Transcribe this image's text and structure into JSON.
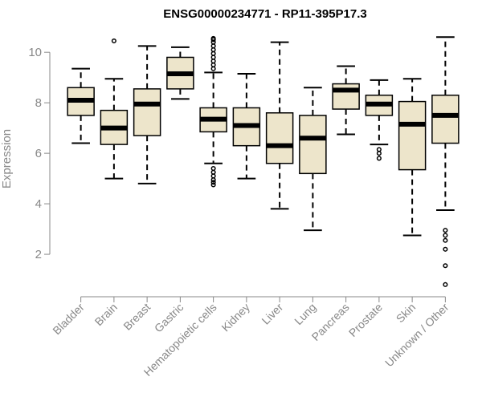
{
  "chart_data": {
    "type": "boxplot",
    "title": "ENSG00000234771 - RP11-395P17.3",
    "xlabel": "",
    "ylabel": "Expression",
    "ylim": [
      0.7,
      10.8
    ],
    "yticks": [
      2,
      4,
      6,
      8,
      10
    ],
    "grid": false,
    "colors": {
      "box_fill": "#ede5cb",
      "stroke": "#000000",
      "axis": "#888888",
      "text": "#888888"
    },
    "categories": [
      "Bladder",
      "Brain",
      "Breast",
      "Gastric",
      "Hematopoietic cells",
      "Kidney",
      "Liver",
      "Lung",
      "Pancreas",
      "Prostate",
      "Skin",
      "Unknown / Other"
    ],
    "boxes": [
      {
        "label": "Bladder",
        "whisker_low": 6.4,
        "q1": 7.5,
        "median": 8.1,
        "q3": 8.6,
        "whisker_high": 9.35,
        "outliers": []
      },
      {
        "label": "Brain",
        "whisker_low": 5.0,
        "q1": 6.35,
        "median": 7.0,
        "q3": 7.7,
        "whisker_high": 8.95,
        "outliers": [
          10.45
        ]
      },
      {
        "label": "Breast",
        "whisker_low": 4.8,
        "q1": 6.7,
        "median": 7.95,
        "q3": 8.55,
        "whisker_high": 10.25,
        "outliers": []
      },
      {
        "label": "Gastric",
        "whisker_low": 8.15,
        "q1": 8.55,
        "median": 9.15,
        "q3": 9.8,
        "whisker_high": 10.2,
        "outliers": []
      },
      {
        "label": "Hematopoietic cells",
        "whisker_low": 5.6,
        "q1": 6.85,
        "median": 7.35,
        "q3": 7.8,
        "whisker_high": 9.2,
        "outliers": [
          9.35,
          9.5,
          9.65,
          9.8,
          9.95,
          10.1,
          10.25,
          10.4,
          10.5,
          10.55,
          5.4,
          5.25,
          5.1,
          4.95,
          4.85,
          4.75
        ]
      },
      {
        "label": "Kidney",
        "whisker_low": 5.0,
        "q1": 6.3,
        "median": 7.1,
        "q3": 7.8,
        "whisker_high": 9.15,
        "outliers": []
      },
      {
        "label": "Liver",
        "whisker_low": 3.8,
        "q1": 5.6,
        "median": 6.3,
        "q3": 7.6,
        "whisker_high": 10.4,
        "outliers": []
      },
      {
        "label": "Lung",
        "whisker_low": 2.95,
        "q1": 5.2,
        "median": 6.6,
        "q3": 7.5,
        "whisker_high": 8.6,
        "outliers": []
      },
      {
        "label": "Pancreas",
        "whisker_low": 6.75,
        "q1": 7.75,
        "median": 8.5,
        "q3": 8.75,
        "whisker_high": 9.45,
        "outliers": []
      },
      {
        "label": "Prostate",
        "whisker_low": 6.35,
        "q1": 7.5,
        "median": 7.95,
        "q3": 8.3,
        "whisker_high": 8.9,
        "outliers": [
          6.15,
          6.0,
          5.8
        ]
      },
      {
        "label": "Skin",
        "whisker_low": 2.75,
        "q1": 5.35,
        "median": 7.15,
        "q3": 8.05,
        "whisker_high": 8.95,
        "outliers": []
      },
      {
        "label": "Unknown / Other",
        "whisker_low": 3.75,
        "q1": 6.4,
        "median": 7.5,
        "q3": 8.3,
        "whisker_high": 10.6,
        "outliers": [
          2.95,
          2.75,
          2.55,
          2.2,
          1.55,
          0.8
        ]
      }
    ]
  }
}
